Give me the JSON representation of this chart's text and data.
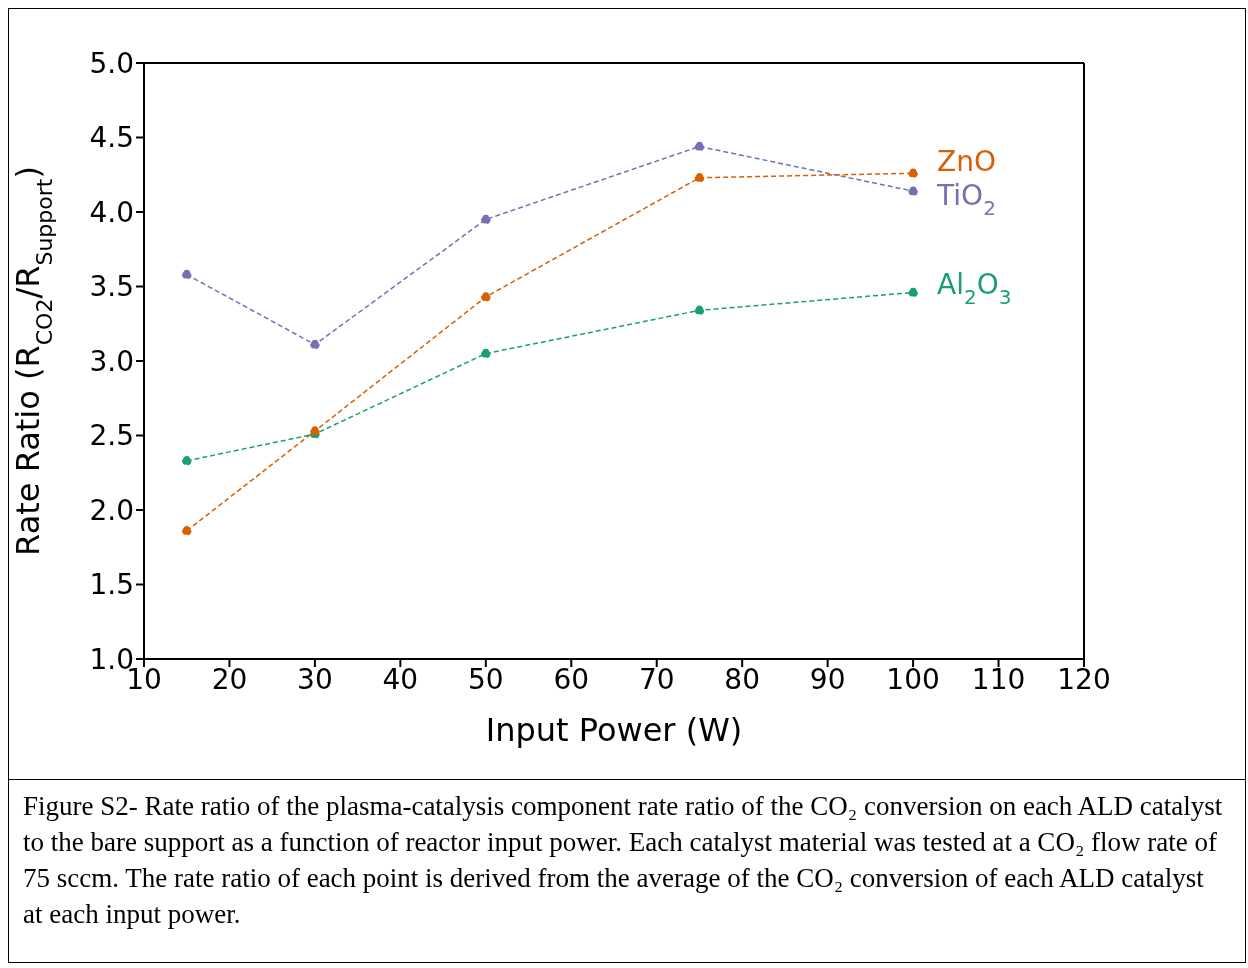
{
  "chart_data": {
    "type": "line",
    "xlabel": "Input Power (W)",
    "ylabel": "Rate Ratio (R$_{CO2}$/R$_{Support}$)",
    "x": [
      15,
      30,
      50,
      75,
      100
    ],
    "series": [
      {
        "name": "ZnO",
        "color": "#d95f02",
        "values": [
          1.86,
          2.53,
          3.43,
          4.23,
          4.26
        ]
      },
      {
        "name": "TiO$_{2}$",
        "color": "#7570b3",
        "values": [
          3.58,
          3.11,
          3.95,
          4.44,
          4.14
        ]
      },
      {
        "name": "Al$_{2}$O$_{3}$",
        "color": "#1b9e77",
        "values": [
          2.33,
          2.51,
          3.05,
          3.34,
          3.46
        ]
      }
    ],
    "xlim": [
      10,
      120
    ],
    "xticks": [
      10,
      20,
      30,
      40,
      50,
      60,
      70,
      80,
      90,
      100,
      110,
      120
    ],
    "ylim": [
      1.0,
      5.0
    ],
    "yticks": [
      {
        "value": 1,
        "label": "1.0"
      },
      {
        "value": 1.5,
        "label": "1.5"
      },
      {
        "value": 2,
        "label": "2.0"
      },
      {
        "value": 2.5,
        "label": "2.5"
      },
      {
        "value": 3,
        "label": "3.0"
      },
      {
        "value": 3.5,
        "label": "3.5"
      },
      {
        "value": 4,
        "label": "4.0"
      },
      {
        "value": 4.5,
        "label": "4.5"
      },
      {
        "value": 5,
        "label": "5.0"
      }
    ],
    "grid": false,
    "legend": false,
    "marker": "circle",
    "line_style": "dashed",
    "annotations": [
      "Figure S2- Rate ratio of the plasma-catalysis component rate ratio of the CO₂ conversion on each ALD catalyst to the bare support as a function of reactor input power. Each catalyst material was tested at a CO₂ flow rate of 75 sccm. The rate ratio of each point is derived from the average of the CO₂ conversion of each ALD catalyst at each input power."
    ]
  }
}
